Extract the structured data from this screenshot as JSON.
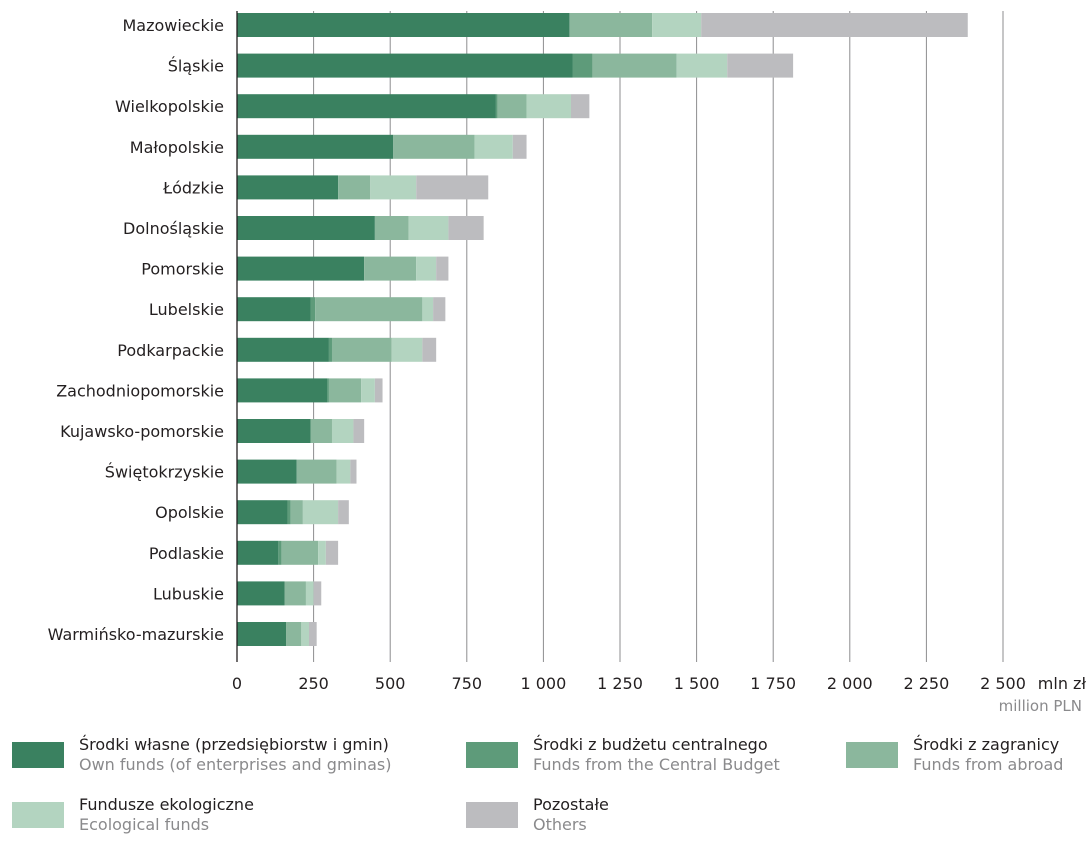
{
  "chart_data": {
    "type": "bar",
    "orientation": "horizontal",
    "stacked": true,
    "categories": [
      "Mazowieckie",
      "Śląskie",
      "Wielkopolskie",
      "Małopolskie",
      "Łódzkie",
      "Dolnośląskie",
      "Pomorskie",
      "Lubelskie",
      "Podkarpackie",
      "Zachodniopomorskie",
      "Kujawsko-pomorskie",
      "Świętokrzyskie",
      "Opolskie",
      "Podlaskie",
      "Lubuskie",
      "Warmińsko-mazurskie"
    ],
    "series": [
      {
        "name": "Środki własne (przedsiębiorstw i gmin)",
        "name_en": "Own funds (of enterprises and gminas)",
        "color": "#3a8160",
        "values": [
          1085,
          1095,
          845,
          510,
          330,
          450,
          415,
          240,
          300,
          295,
          240,
          195,
          165,
          135,
          155,
          160
        ]
      },
      {
        "name": "Środki z budżetu centralnego",
        "name_en": "Funds from the Central Budget",
        "color": "#5e9b7a",
        "values": [
          0,
          65,
          5,
          0,
          0,
          0,
          0,
          15,
          10,
          5,
          0,
          0,
          10,
          10,
          0,
          0
        ]
      },
      {
        "name": "Środki z zagranicy",
        "name_en": "Funds from abroad",
        "color": "#8bb79d",
        "values": [
          270,
          275,
          95,
          265,
          105,
          110,
          170,
          350,
          195,
          105,
          70,
          130,
          40,
          120,
          70,
          50
        ]
      },
      {
        "name": "Fundusze ekologiczne",
        "name_en": "Ecological funds",
        "color": "#b3d4c0",
        "values": [
          160,
          165,
          145,
          125,
          150,
          130,
          65,
          35,
          100,
          45,
          70,
          45,
          115,
          25,
          25,
          25
        ]
      },
      {
        "name": "Pozostałe",
        "name_en": "Others",
        "color": "#bcbcbf",
        "values": [
          870,
          215,
          60,
          45,
          235,
          115,
          40,
          40,
          45,
          25,
          35,
          20,
          35,
          40,
          25,
          25
        ]
      }
    ],
    "xlim": [
      0,
      2500
    ],
    "xticks": [
      "0",
      "250",
      "500",
      "750",
      "1 000",
      "1 250",
      "1 500",
      "1 750",
      "2 000",
      "2 250",
      "2 500"
    ],
    "xlabel": "mln zł",
    "xlabel_en": "million PLN",
    "grid": "vertical",
    "legend_position": "bottom"
  }
}
